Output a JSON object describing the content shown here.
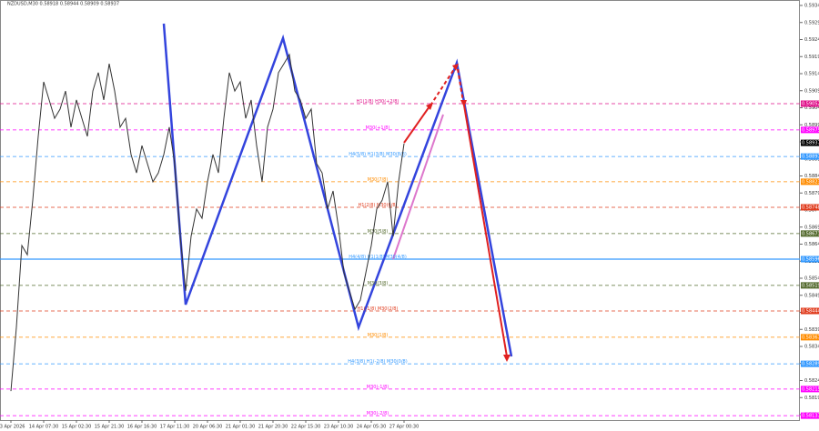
{
  "chart_data": {
    "type": "line",
    "title": "NZDUSD,M30 0.58918 0.58944 0.58909 0.58937",
    "categories": [
      "13 Apr 2026",
      null,
      null,
      null,
      null,
      null,
      "14 Apr 07:30",
      null,
      null,
      null,
      null,
      null,
      "15 Apr 02:30",
      null,
      null,
      null,
      null,
      null,
      "15 Apr 21:30",
      null,
      null,
      null,
      null,
      null,
      "16 Apr 16:30",
      null,
      null,
      null,
      null,
      null,
      "17 Apr 11:30",
      null,
      null,
      null,
      null,
      null,
      "20 Apr 06:30",
      null,
      null,
      null,
      null,
      null,
      "21 Apr 01:30",
      null,
      null,
      null,
      null,
      null,
      "21 Apr 20:30",
      null,
      null,
      null,
      null,
      null,
      "22 Apr 15:30",
      null,
      null,
      null,
      null,
      null,
      "23 Apr 10:30",
      null,
      null,
      null,
      null,
      null,
      "24 Apr 05:30",
      null,
      null,
      null,
      null,
      null,
      "27 Apr 00:30"
    ],
    "series": [
      {
        "name": "NZDUSD",
        "color": "#333333",
        "values": [
          0.58209,
          0.58396,
          0.58636,
          0.58609,
          0.58769,
          0.58956,
          0.59116,
          0.59063,
          0.59009,
          0.59036,
          0.59089,
          0.58983,
          0.59063,
          0.59009,
          0.58956,
          0.59089,
          0.59143,
          0.59063,
          0.59169,
          0.59089,
          0.58983,
          0.59009,
          0.58903,
          0.58849,
          0.58929,
          0.58876,
          0.58823,
          0.58849,
          0.58903,
          0.58983,
          0.58876,
          0.58663,
          0.58503,
          0.58663,
          0.58743,
          0.58716,
          0.58823,
          0.58903,
          0.58849,
          0.59009,
          0.59143,
          0.59089,
          0.59116,
          0.59009,
          0.59063,
          0.58929,
          0.58823,
          0.58983,
          0.59036,
          0.59143,
          0.59169,
          0.59196,
          0.59089,
          0.59063,
          0.59009,
          0.59036,
          0.58876,
          0.58849,
          0.58743,
          0.58796,
          0.58689,
          0.58556,
          0.58503,
          0.58449,
          0.58476,
          0.58556,
          0.58636,
          0.58743,
          0.58769,
          0.58823,
          0.58663,
          0.58823,
          0.58935
        ]
      }
    ],
    "last_price": 0.58937,
    "ylim": [
      0.58124,
      0.59356
    ],
    "yticks": [
      {
        "value": 0.5934,
        "label": "0.59340"
      },
      {
        "value": 0.5929,
        "label": "0.59290"
      },
      {
        "value": 0.5924,
        "label": "0.59240"
      },
      {
        "value": 0.5919,
        "label": "0.59190"
      },
      {
        "value": 0.5914,
        "label": "0.59140"
      },
      {
        "value": 0.5909,
        "label": "0.59090"
      },
      {
        "value": 0.5904,
        "label": "0.59040"
      },
      {
        "value": 0.5899,
        "label": "0.58990"
      },
      {
        "value": 0.5894,
        "label": "0.58940"
      },
      {
        "value": 0.5889,
        "label": "0.58890"
      },
      {
        "value": 0.5884,
        "label": "0.58840"
      },
      {
        "value": 0.5879,
        "label": "0.58790"
      },
      {
        "value": 0.5874,
        "label": "0.58740"
      },
      {
        "value": 0.5869,
        "label": "0.58690"
      },
      {
        "value": 0.5864,
        "label": "0.58640"
      },
      {
        "value": 0.5859,
        "label": "0.58590"
      },
      {
        "value": 0.5854,
        "label": "0.58540"
      },
      {
        "value": 0.5849,
        "label": "0.58490"
      },
      {
        "value": 0.5844,
        "label": "0.58440"
      },
      {
        "value": 0.5839,
        "label": "0.58390"
      },
      {
        "value": 0.5834,
        "label": "0.58340"
      },
      {
        "value": 0.5829,
        "label": "0.58290"
      },
      {
        "value": 0.5824,
        "label": "0.58240"
      },
      {
        "value": 0.5819,
        "label": "0.58190"
      },
      {
        "value": 0.5814,
        "label": "0.58140"
      }
    ],
    "levels": [
      {
        "label": "H1(1/8) H30(+2/8)",
        "value": 0.59052,
        "color": "#e0108a",
        "dashed": true
      },
      {
        "label": "M30(+1/8)",
        "value": 0.58975,
        "color": "#ff00ff",
        "dashed": true
      },
      {
        "label": "H4(5/8) H1(3/8) M30(8/8)",
        "value": 0.58897,
        "color": "#3399ff",
        "dashed": true
      },
      {
        "label": "M30(7/8)",
        "value": 0.58823,
        "color": "#ff8c00",
        "dashed": true
      },
      {
        "label": "H1(2/8) M30(6/8)",
        "value": 0.58748,
        "color": "#e03c1e",
        "dashed": true
      },
      {
        "label": "M30(5/8)",
        "value": 0.58671,
        "color": "#556b2f",
        "dashed": true
      },
      {
        "label": "H4(4/8) H1(1/8) M30(4/8)",
        "value": 0.58596,
        "color": "#3399ff",
        "dashed": false
      },
      {
        "label": "M30(3/8)",
        "value": 0.58519,
        "color": "#556b2f",
        "dashed": true
      },
      {
        "label": "H1(-1/8) M30(2/8)",
        "value": 0.58444,
        "color": "#e03c1e",
        "dashed": true
      },
      {
        "label": "M30(1/8)",
        "value": 0.58367,
        "color": "#ff8c00",
        "dashed": true
      },
      {
        "label": "H4(3/8) H1(-2/8) M30(0/8)",
        "value": 0.58289,
        "color": "#3399ff",
        "dashed": true
      },
      {
        "label": "M30(-1/8)",
        "value": 0.58215,
        "color": "#ff00ff",
        "dashed": true
      },
      {
        "label": "M30(-2/8)",
        "value": 0.58137,
        "color": "#ff00ff",
        "dashed": true
      }
    ]
  }
}
